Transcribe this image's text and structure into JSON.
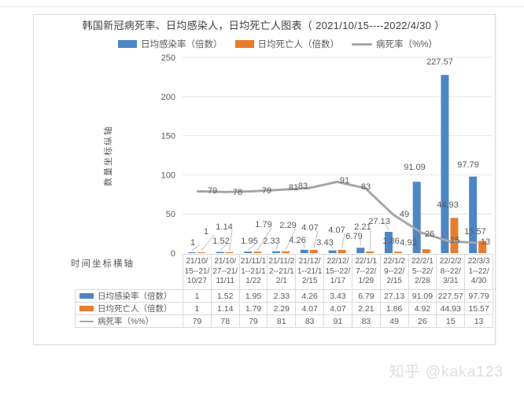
{
  "page": {
    "watermark": "知乎 @kaka123"
  },
  "chart": {
    "title": "韩国新冠病死率、日均感染人，日均死亡人图表（ 2021/10/15----2022/4/30 ）",
    "y_axis": {
      "title": "数量坐标纵轴",
      "ticks": [
        0,
        50,
        100,
        150,
        200,
        250
      ]
    },
    "x_axis": {
      "title": "时间坐标横轴"
    }
  },
  "chart_data": {
    "type": "combo",
    "title": "韩国新冠病死率、日均感染人，日均死亡人图表（ 2021/10/15----2022/4/30 ）",
    "categories": [
      "21/10/15--21/10/27",
      "21/10/27--21/11/11",
      "21/11/11--21/11/22",
      "21/11/22--21/12/1",
      "21/12/1--21/12/15",
      "22/12/15--22/1/17",
      "22/1/17--22/1/29",
      "22/1/29--22/2/15",
      "22/2/15--22/2/28",
      "22/2/28--22/3/31",
      "22/3/31--22/4/30"
    ],
    "series": [
      {
        "name": "日均感染率（倍数）",
        "type": "bar",
        "color": "#4d86c4",
        "values": [
          1,
          1.52,
          1.95,
          2.33,
          4.26,
          3.43,
          6.79,
          27.13,
          91.09,
          227.57,
          97.79
        ]
      },
      {
        "name": "日均死亡人（倍数）",
        "type": "bar",
        "color": "#e87d2d",
        "values": [
          1,
          1.14,
          1.79,
          2.29,
          4.07,
          4.07,
          2.21,
          1.86,
          4.92,
          44.93,
          15.57
        ]
      },
      {
        "name": "病死率（%%）",
        "type": "line",
        "color": "#a6a6a6",
        "values": [
          79,
          78,
          79,
          81,
          83,
          91,
          83,
          49,
          26,
          15,
          13
        ]
      }
    ],
    "ylim": [
      0,
      250
    ],
    "grid": true,
    "legend_position": "top",
    "data_labels": true,
    "data_table_shown": true
  }
}
